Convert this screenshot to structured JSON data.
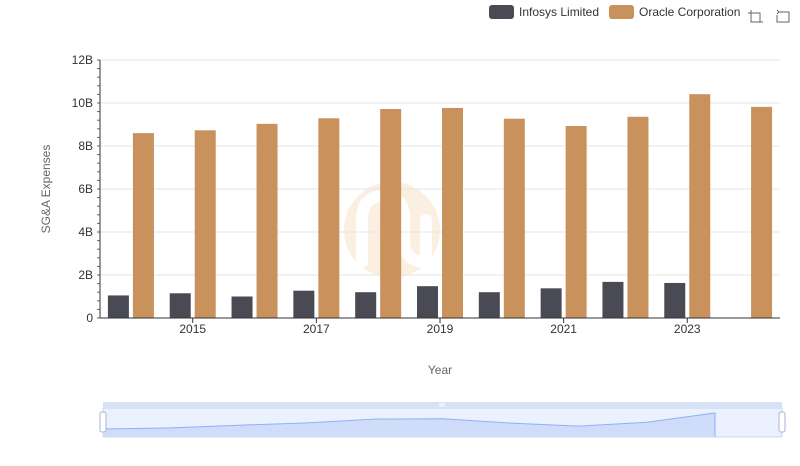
{
  "chart_data": {
    "type": "bar",
    "title": "",
    "xlabel": "Year",
    "ylabel": "SG&A Expenses",
    "ylim": [
      0,
      12000000000
    ],
    "y_ticks": [
      {
        "value": 0,
        "label": "0"
      },
      {
        "value": 2000000000,
        "label": "2B"
      },
      {
        "value": 4000000000,
        "label": "4B"
      },
      {
        "value": 6000000000,
        "label": "6B"
      },
      {
        "value": 8000000000,
        "label": "8B"
      },
      {
        "value": 10000000000,
        "label": "10B"
      },
      {
        "value": 12000000000,
        "label": "12B"
      }
    ],
    "grid": true,
    "legend_position": "top-right",
    "categories": [
      "2014",
      "2015",
      "2016",
      "2017",
      "2018",
      "2019",
      "2020",
      "2021",
      "2022",
      "2023",
      "2024"
    ],
    "x_tick_labels": [
      "",
      "2015",
      "",
      "2017",
      "",
      "2019",
      "",
      "2021",
      "",
      "2023",
      ""
    ],
    "series": [
      {
        "name": "Infosys Limited",
        "color": "#4a4a55",
        "values": [
          1050000000,
          1150000000,
          1000000000,
          1270000000,
          1200000000,
          1480000000,
          1200000000,
          1380000000,
          1680000000,
          1630000000,
          null
        ]
      },
      {
        "name": "Oracle Corporation",
        "color": "#c9915c",
        "values": [
          8600000000,
          8730000000,
          9030000000,
          9290000000,
          9720000000,
          9770000000,
          9270000000,
          8930000000,
          9360000000,
          10410000000,
          9820000000
        ]
      }
    ]
  },
  "toolbar": {
    "zoom_icon": "zoom-select-icon",
    "reset_icon": "zoom-reset-icon"
  },
  "data_zoom": {
    "handle_icon": "drag-grip-icon",
    "start_percent": 0,
    "end_percent": 100
  },
  "colors": {
    "grid": "#e6e6e6",
    "axis": "#333333",
    "zoom_fill": "#dfe7fb",
    "zoom_line": "#8fb0f7",
    "zoom_border": "#d2dbee",
    "watermark": "#f6e3c9"
  }
}
